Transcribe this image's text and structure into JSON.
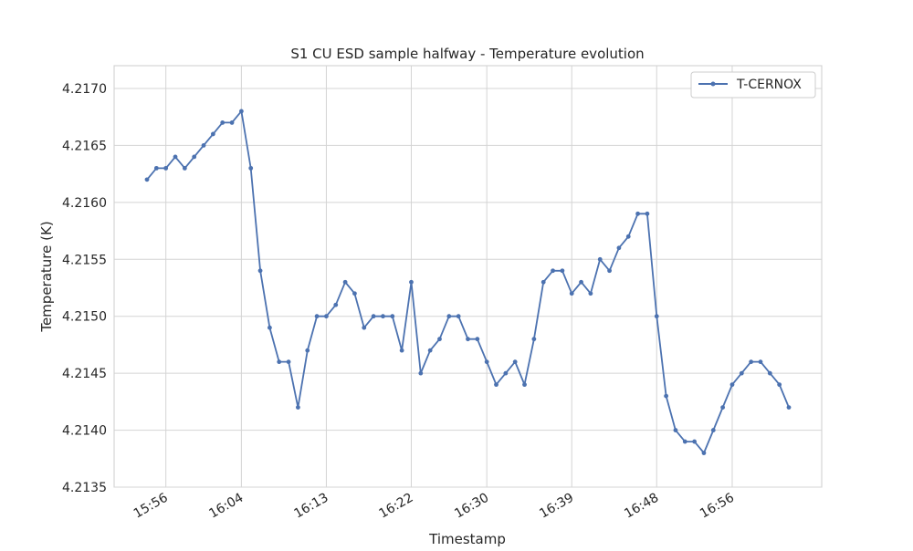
{
  "chart_data": {
    "type": "line",
    "title": "S1 CU ESD sample halfway - Temperature evolution",
    "xlabel": "Timestamp",
    "ylabel": "Temperature (K)",
    "x_domain": [
      "15:54",
      "17:02"
    ],
    "ylim": [
      4.2135,
      4.2172
    ],
    "x_ticks": [
      "15:56",
      "16:04",
      "16:13",
      "16:22",
      "16:30",
      "16:39",
      "16:48",
      "16:56"
    ],
    "y_ticks": [
      "4.2135",
      "4.2140",
      "4.2145",
      "4.2150",
      "4.2155",
      "4.2160",
      "4.2165",
      "4.2170"
    ],
    "grid": true,
    "legend_position": "top-right",
    "series": [
      {
        "name": "T-CERNOX",
        "color": "#4c72b0",
        "marker": "circle",
        "points": [
          [
            "15:54",
            4.2162
          ],
          [
            "15:55",
            4.2163
          ],
          [
            "15:56",
            4.2163
          ],
          [
            "15:57",
            4.2164
          ],
          [
            "15:58",
            4.2163
          ],
          [
            "15:59",
            4.2164
          ],
          [
            "16:00",
            4.2165
          ],
          [
            "16:01",
            4.2166
          ],
          [
            "16:02",
            4.2167
          ],
          [
            "16:03",
            4.2167
          ],
          [
            "16:04",
            4.2168
          ],
          [
            "16:05",
            4.2163
          ],
          [
            "16:06",
            4.2154
          ],
          [
            "16:07",
            4.2149
          ],
          [
            "16:08",
            4.2146
          ],
          [
            "16:09",
            4.2146
          ],
          [
            "16:10",
            4.2142
          ],
          [
            "16:11",
            4.2147
          ],
          [
            "16:12",
            4.215
          ],
          [
            "16:13",
            4.215
          ],
          [
            "16:14",
            4.2151
          ],
          [
            "16:15",
            4.2153
          ],
          [
            "16:16",
            4.2152
          ],
          [
            "16:17",
            4.2149
          ],
          [
            "16:18",
            4.215
          ],
          [
            "16:19",
            4.215
          ],
          [
            "16:20",
            4.215
          ],
          [
            "16:21",
            4.2147
          ],
          [
            "16:22",
            4.2153
          ],
          [
            "16:23",
            4.2145
          ],
          [
            "16:24",
            4.2147
          ],
          [
            "16:25",
            4.2148
          ],
          [
            "16:26",
            4.215
          ],
          [
            "16:27",
            4.215
          ],
          [
            "16:28",
            4.2148
          ],
          [
            "16:29",
            4.2148
          ],
          [
            "16:30",
            4.2146
          ],
          [
            "16:31",
            4.2144
          ],
          [
            "16:32",
            4.2145
          ],
          [
            "16:33",
            4.2146
          ],
          [
            "16:34",
            4.2144
          ],
          [
            "16:35",
            4.2148
          ],
          [
            "16:36",
            4.2153
          ],
          [
            "16:37",
            4.2154
          ],
          [
            "16:38",
            4.2154
          ],
          [
            "16:39",
            4.2152
          ],
          [
            "16:40",
            4.2153
          ],
          [
            "16:41",
            4.2152
          ],
          [
            "16:42",
            4.2155
          ],
          [
            "16:43",
            4.2154
          ],
          [
            "16:44",
            4.2156
          ],
          [
            "16:45",
            4.2157
          ],
          [
            "16:46",
            4.2159
          ],
          [
            "16:47",
            4.2159
          ],
          [
            "16:48",
            4.215
          ],
          [
            "16:49",
            4.2143
          ],
          [
            "16:50",
            4.214
          ],
          [
            "16:51",
            4.2139
          ],
          [
            "16:52",
            4.2139
          ],
          [
            "16:53",
            4.2138
          ],
          [
            "16:54",
            4.214
          ],
          [
            "16:55",
            4.2142
          ],
          [
            "16:56",
            4.2144
          ],
          [
            "16:57",
            4.2145
          ],
          [
            "16:58",
            4.2146
          ],
          [
            "16:59",
            4.2146
          ],
          [
            "17:00",
            4.2145
          ],
          [
            "17:01",
            4.2144
          ],
          [
            "17:02",
            4.2142
          ]
        ]
      }
    ]
  }
}
